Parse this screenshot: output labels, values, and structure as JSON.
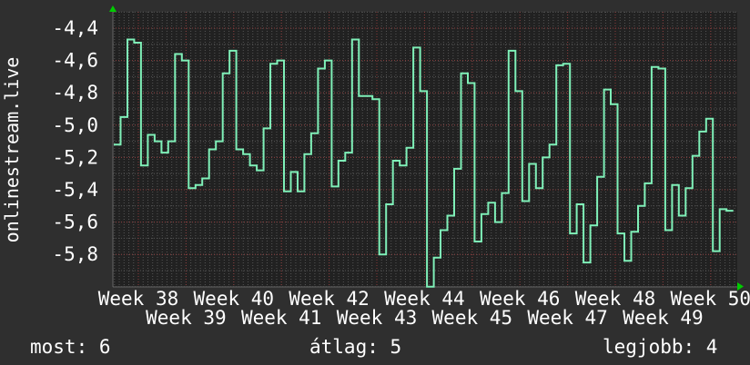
{
  "chart_data": {
    "type": "line",
    "step": true,
    "title": "onlinestream.live",
    "xlabel": "",
    "ylabel": "onlinestream.live",
    "ylim": [
      -6.0,
      -4.3
    ],
    "yticks": [
      -4.4,
      -4.6,
      -4.8,
      -5.0,
      -5.2,
      -5.4,
      -5.6,
      -5.8
    ],
    "ytick_labels": [
      "-4,4",
      "-4,6",
      "-4,8",
      "-5,0",
      "-5,2",
      "-5,4",
      "-5,6",
      "-5,8"
    ],
    "xtick_labels": [
      "Week 38",
      "Week 39",
      "Week 40",
      "Week 41",
      "Week 42",
      "Week 43",
      "Week 44",
      "Week 45",
      "Week 46",
      "Week 47",
      "Week 48",
      "Week 49",
      "Week 50"
    ],
    "grid": true,
    "line_color": "#7ff0b8",
    "values": [
      -5.12,
      -4.95,
      -4.47,
      -4.49,
      -5.25,
      -5.06,
      -5.1,
      -5.17,
      -5.1,
      -4.56,
      -4.6,
      -5.39,
      -5.37,
      -5.33,
      -5.15,
      -5.1,
      -4.68,
      -4.54,
      -5.15,
      -5.18,
      -5.25,
      -5.28,
      -5.02,
      -4.62,
      -4.6,
      -5.41,
      -5.29,
      -5.41,
      -5.18,
      -5.05,
      -4.65,
      -4.6,
      -5.38,
      -5.22,
      -5.17,
      -4.47,
      -4.82,
      -4.82,
      -4.84,
      -5.8,
      -5.49,
      -5.22,
      -5.25,
      -5.14,
      -4.52,
      -4.79,
      -6.0,
      -5.82,
      -5.65,
      -5.56,
      -5.27,
      -4.68,
      -4.74,
      -5.72,
      -5.55,
      -5.48,
      -5.6,
      -5.42,
      -4.54,
      -4.79,
      -5.47,
      -5.24,
      -5.39,
      -5.2,
      -5.12,
      -4.63,
      -4.62,
      -5.67,
      -5.49,
      -5.85,
      -5.62,
      -5.32,
      -4.78,
      -4.87,
      -5.67,
      -5.84,
      -5.66,
      -5.5,
      -5.36,
      -4.64,
      -4.65,
      -5.65,
      -5.37,
      -5.56,
      -5.39,
      -5.19,
      -5.04,
      -4.96,
      -5.78,
      -5.52,
      -5.53
    ]
  },
  "footer": {
    "current": "most: 6",
    "average": "átlag: 5",
    "best": "legjobb: 4"
  }
}
